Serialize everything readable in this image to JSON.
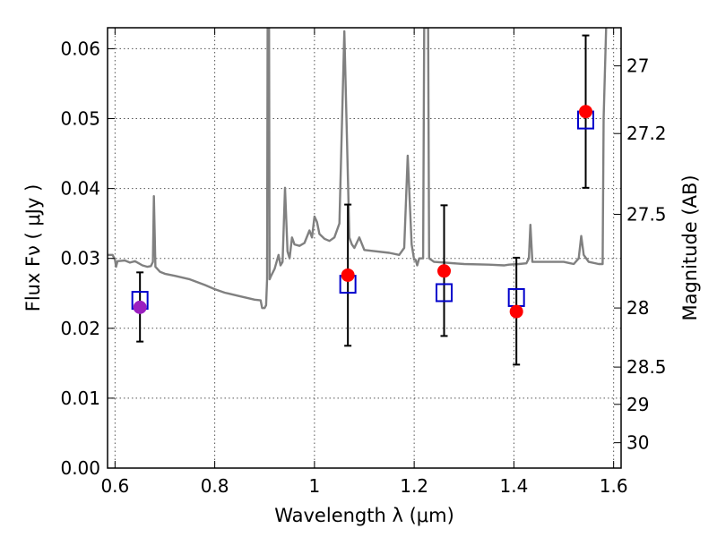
{
  "chart_data": {
    "type": "scatter",
    "title": "",
    "xlabel": "Wavelength  λ (μm)",
    "ylabel": "Flux  Fν  ( μJy )",
    "ylabel_right": "Magnitude (AB)",
    "xlim": [
      0.585,
      1.615
    ],
    "ylim": [
      0.0,
      0.063
    ],
    "grid": true,
    "grid_style": "dotted",
    "x_ticks": [
      0.6,
      0.8,
      1.0,
      1.2,
      1.4,
      1.6
    ],
    "x_tick_labels": [
      "0.6",
      "0.8",
      "1",
      "1.2",
      "1.4",
      "1.6"
    ],
    "y_ticks": [
      0.0,
      0.01,
      0.02,
      0.03,
      0.04,
      0.05,
      0.06
    ],
    "y_tick_labels": [
      "0.00",
      "0.01",
      "0.02",
      "0.03",
      "0.04",
      "0.05",
      "0.06"
    ],
    "right_ticks": [
      {
        "mag": 27,
        "label": "27"
      },
      {
        "mag": 27.2,
        "label": "27.2"
      },
      {
        "mag": 27.5,
        "label": "27.5"
      },
      {
        "mag": 28,
        "label": "28"
      },
      {
        "mag": 28.5,
        "label": "28.5"
      },
      {
        "mag": 29,
        "label": "29"
      },
      {
        "mag": 30,
        "label": "30"
      }
    ],
    "colors": {
      "model": "#808080",
      "observed": "#ff0000",
      "observed_first": "#9b1fc0",
      "model_band": "#0000cc",
      "errorbar": "#000000",
      "grid": "#555555"
    },
    "series": [
      {
        "role": "observed",
        "points": [
          {
            "x": 0.65,
            "y": 0.023,
            "yerr_low": 0.0049,
            "yerr_high": 0.005
          },
          {
            "x": 1.067,
            "y": 0.0276,
            "yerr_low": 0.0101,
            "yerr_high": 0.0101
          },
          {
            "x": 1.26,
            "y": 0.0282,
            "yerr_low": 0.0093,
            "yerr_high": 0.0094
          },
          {
            "x": 1.405,
            "y": 0.0224,
            "yerr_low": 0.0076,
            "yerr_high": 0.0077
          },
          {
            "x": 1.544,
            "y": 0.051,
            "yerr_low": 0.0109,
            "yerr_high": 0.0109
          }
        ]
      },
      {
        "role": "model_band",
        "points": [
          {
            "x": 0.65,
            "y": 0.024
          },
          {
            "x": 1.067,
            "y": 0.0263
          },
          {
            "x": 1.26,
            "y": 0.0251
          },
          {
            "x": 1.405,
            "y": 0.0244
          },
          {
            "x": 1.544,
            "y": 0.0498
          }
        ]
      },
      {
        "role": "model",
        "type": "line",
        "points": [
          [
            0.585,
            0.0305
          ],
          [
            0.595,
            0.0305
          ],
          [
            0.6,
            0.0298
          ],
          [
            0.602,
            0.0288
          ],
          [
            0.605,
            0.0296
          ],
          [
            0.62,
            0.0297
          ],
          [
            0.63,
            0.0294
          ],
          [
            0.64,
            0.0296
          ],
          [
            0.655,
            0.029
          ],
          [
            0.665,
            0.0288
          ],
          [
            0.672,
            0.0289
          ],
          [
            0.676,
            0.0295
          ],
          [
            0.678,
            0.0389
          ],
          [
            0.681,
            0.0288
          ],
          [
            0.69,
            0.0281
          ],
          [
            0.7,
            0.0278
          ],
          [
            0.72,
            0.0275
          ],
          [
            0.75,
            0.027
          ],
          [
            0.78,
            0.0262
          ],
          [
            0.8,
            0.0256
          ],
          [
            0.82,
            0.0251
          ],
          [
            0.85,
            0.0246
          ],
          [
            0.88,
            0.0241
          ],
          [
            0.892,
            0.024
          ],
          [
            0.895,
            0.0229
          ],
          [
            0.9,
            0.0229
          ],
          [
            0.903,
            0.0233
          ],
          [
            0.905,
            0.027
          ],
          [
            0.906,
            0.063
          ],
          [
            0.909,
            0.063
          ],
          [
            0.91,
            0.027
          ],
          [
            0.913,
            0.0275
          ],
          [
            0.92,
            0.0285
          ],
          [
            0.928,
            0.0305
          ],
          [
            0.932,
            0.029
          ],
          [
            0.936,
            0.0295
          ],
          [
            0.941,
            0.0401
          ],
          [
            0.946,
            0.031
          ],
          [
            0.95,
            0.03
          ],
          [
            0.955,
            0.033
          ],
          [
            0.96,
            0.032
          ],
          [
            0.97,
            0.0318
          ],
          [
            0.98,
            0.0322
          ],
          [
            0.99,
            0.034
          ],
          [
            0.995,
            0.033
          ],
          [
            1.0,
            0.036
          ],
          [
            1.005,
            0.0352
          ],
          [
            1.01,
            0.0335
          ],
          [
            1.02,
            0.0328
          ],
          [
            1.03,
            0.0325
          ],
          [
            1.04,
            0.033
          ],
          [
            1.05,
            0.035
          ],
          [
            1.06,
            0.0625
          ],
          [
            1.07,
            0.033
          ],
          [
            1.075,
            0.032
          ],
          [
            1.08,
            0.0315
          ],
          [
            1.09,
            0.033
          ],
          [
            1.1,
            0.0312
          ],
          [
            1.15,
            0.0308
          ],
          [
            1.17,
            0.0305
          ],
          [
            1.18,
            0.0315
          ],
          [
            1.187,
            0.0447
          ],
          [
            1.195,
            0.032
          ],
          [
            1.2,
            0.0298
          ],
          [
            1.203,
            0.0298
          ],
          [
            1.206,
            0.029
          ],
          [
            1.21,
            0.03
          ],
          [
            1.218,
            0.03
          ],
          [
            1.22,
            0.063
          ],
          [
            1.228,
            0.063
          ],
          [
            1.23,
            0.03
          ],
          [
            1.24,
            0.0295
          ],
          [
            1.3,
            0.0292
          ],
          [
            1.35,
            0.0291
          ],
          [
            1.38,
            0.029
          ],
          [
            1.39,
            0.0291
          ],
          [
            1.41,
            0.0292
          ],
          [
            1.425,
            0.0293
          ],
          [
            1.43,
            0.03
          ],
          [
            1.433,
            0.0348
          ],
          [
            1.437,
            0.0295
          ],
          [
            1.45,
            0.0295
          ],
          [
            1.5,
            0.0295
          ],
          [
            1.52,
            0.0292
          ],
          [
            1.53,
            0.03
          ],
          [
            1.535,
            0.0332
          ],
          [
            1.54,
            0.0305
          ],
          [
            1.55,
            0.0295
          ],
          [
            1.57,
            0.0292
          ],
          [
            1.578,
            0.0292
          ],
          [
            1.58,
            0.05
          ],
          [
            1.585,
            0.063
          ]
        ]
      }
    ]
  }
}
